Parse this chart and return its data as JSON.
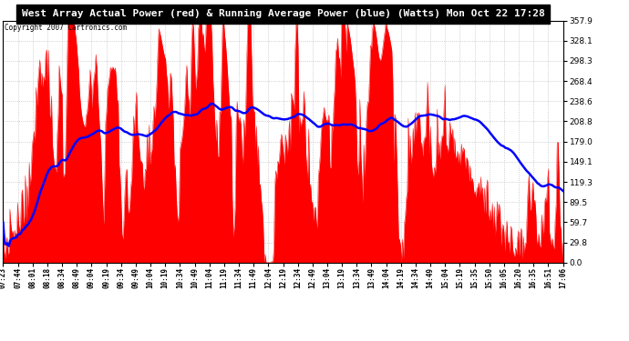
{
  "title": "West Array Actual Power (red) & Running Average Power (blue) (Watts) Mon Oct 22 17:28",
  "copyright": "Copyright 2007 Cartronics.com",
  "ylim": [
    0.0,
    357.9
  ],
  "yticks": [
    0.0,
    29.8,
    59.7,
    89.5,
    119.3,
    149.1,
    179.0,
    208.8,
    238.6,
    268.4,
    298.3,
    328.1,
    357.9
  ],
  "xtick_labels": [
    "07:23",
    "07:44",
    "08:01",
    "08:18",
    "08:34",
    "08:49",
    "09:04",
    "09:19",
    "09:34",
    "09:49",
    "10:04",
    "10:19",
    "10:34",
    "10:49",
    "11:04",
    "11:19",
    "11:34",
    "11:49",
    "12:04",
    "12:19",
    "12:34",
    "12:49",
    "13:04",
    "13:19",
    "13:34",
    "13:49",
    "14:04",
    "14:19",
    "14:34",
    "14:49",
    "15:04",
    "15:19",
    "15:35",
    "15:50",
    "16:05",
    "16:20",
    "16:35",
    "16:51",
    "17:06"
  ],
  "bg_color": "#ffffff",
  "plot_bg_color": "#ffffff",
  "red_color": "#ff0000",
  "blue_color": "#0000ff",
  "grid_color": "#c0c0c0",
  "title_bg_color": "#000000",
  "title_text_color": "#ffffff"
}
